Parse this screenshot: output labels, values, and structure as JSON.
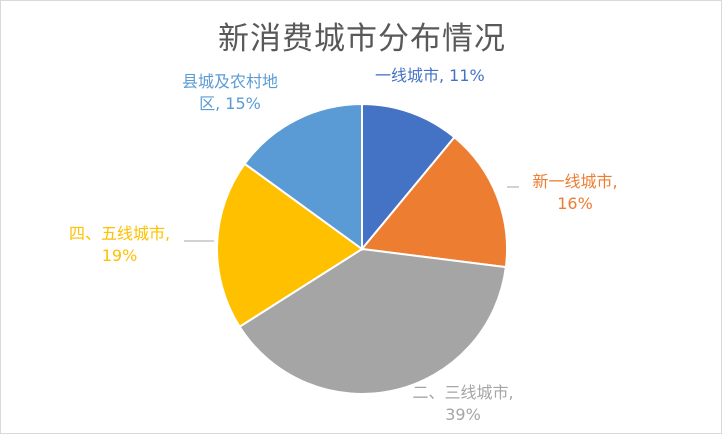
{
  "chart_data": {
    "type": "pie",
    "title": "新消费城市分布情况",
    "categories": [
      "一线城市",
      "新一线城市",
      "二、三线城市",
      "四、五线城市",
      "县城及农村地区"
    ],
    "values": [
      11,
      16,
      39,
      19,
      15
    ],
    "colors": [
      "#4472c4",
      "#ed7d31",
      "#a5a5a5",
      "#ffc000",
      "#5b9bd5"
    ],
    "labels": [
      {
        "line1": "一线城市, 11%",
        "line2": ""
      },
      {
        "line1": "新一线城市,",
        "line2": "16%"
      },
      {
        "line1": "二、三线城市,",
        "line2": "39%"
      },
      {
        "line1": "四、五线城市,",
        "line2": "19%"
      },
      {
        "line1": "县城及农村地",
        "line2": "区, 15%"
      }
    ],
    "legend": "none"
  }
}
